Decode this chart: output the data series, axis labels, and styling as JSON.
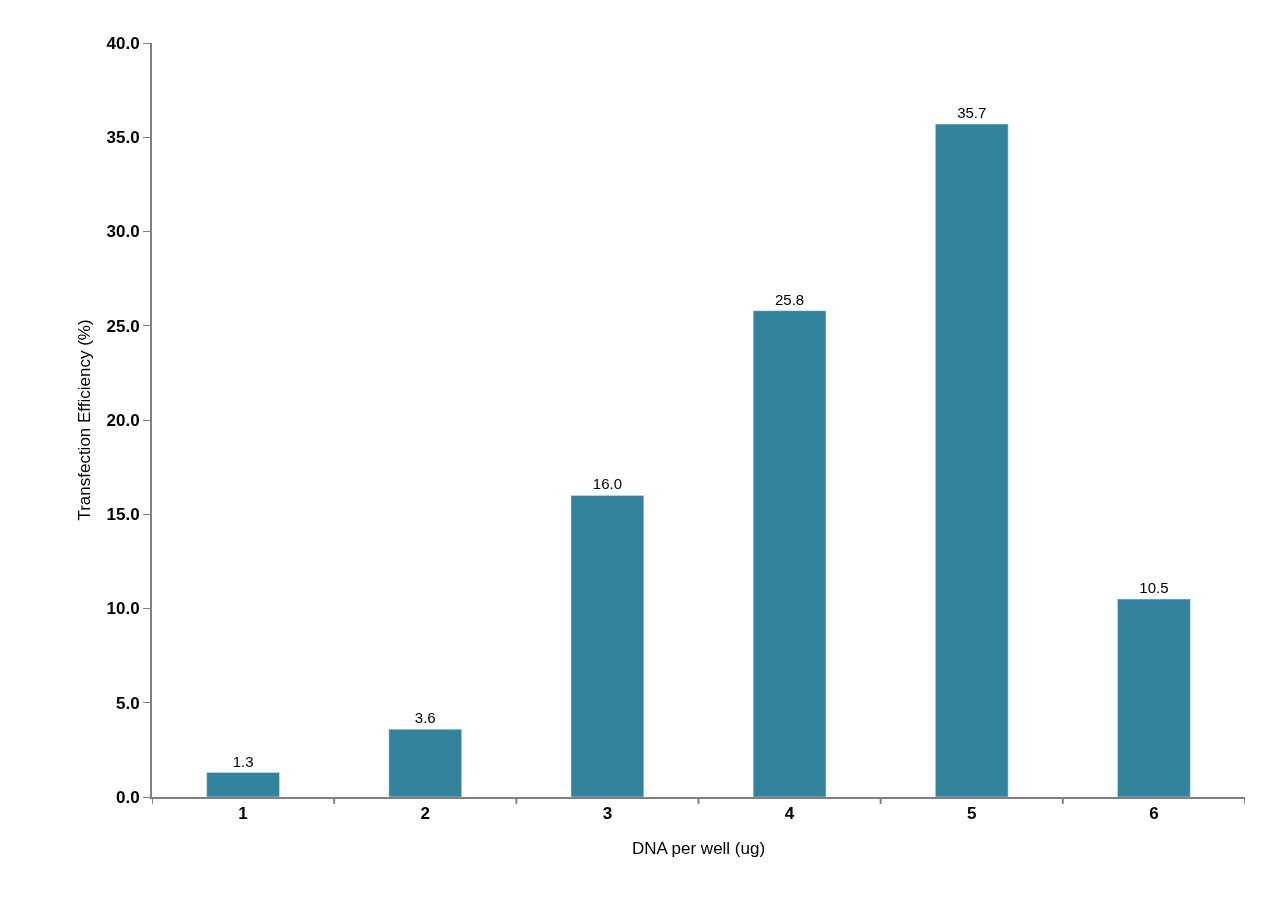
{
  "chart_data": {
    "type": "bar",
    "xlabel": "DNA per well (ug)",
    "ylabel": "Transfection Efficiency (%)",
    "categories": [
      "1",
      "2",
      "3",
      "4",
      "5",
      "6"
    ],
    "values": [
      1.3,
      3.6,
      16.0,
      25.8,
      35.7,
      10.5
    ],
    "value_labels": [
      "1.3",
      "3.6",
      "16.0",
      "25.8",
      "35.7",
      "10.5"
    ],
    "color": "#31849b",
    "ylim": [
      0,
      40
    ],
    "yticks": [
      {
        "value": 0,
        "label": "0.0"
      },
      {
        "value": 5,
        "label": "5.0"
      },
      {
        "value": 10,
        "label": "10.0"
      },
      {
        "value": 15,
        "label": "15.0"
      },
      {
        "value": 20,
        "label": "20.0"
      },
      {
        "value": 25,
        "label": "25.0"
      },
      {
        "value": 30,
        "label": "30.0"
      },
      {
        "value": 35,
        "label": "35.0"
      },
      {
        "value": 40,
        "label": "40.0"
      }
    ],
    "legend": false
  }
}
